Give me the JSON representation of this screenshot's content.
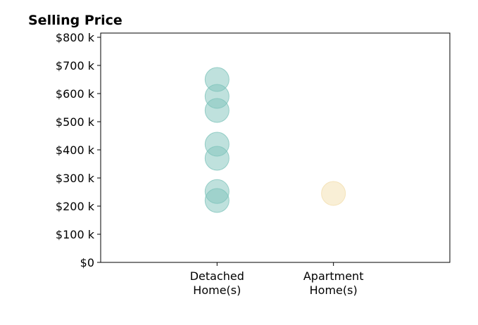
{
  "chart_data": {
    "type": "scatter",
    "title": "Selling Price",
    "xlabel": "",
    "ylabel": "",
    "categories": [
      [
        "Detached",
        "Home(s)"
      ],
      [
        "Apartment",
        "Home(s)"
      ]
    ],
    "y_ticks": [
      {
        "value": 0,
        "label": "$0"
      },
      {
        "value": 100000,
        "label": "$100 k"
      },
      {
        "value": 200000,
        "label": "$200 k"
      },
      {
        "value": 300000,
        "label": "$300 k"
      },
      {
        "value": 400000,
        "label": "$400 k"
      },
      {
        "value": 500000,
        "label": "$500 k"
      },
      {
        "value": 600000,
        "label": "$600 k"
      },
      {
        "value": 700000,
        "label": "$700 k"
      },
      {
        "value": 800000,
        "label": "$800 k"
      }
    ],
    "ylim": [
      0,
      815000
    ],
    "xlim": [
      -1,
      2
    ],
    "grid": false,
    "series": [
      {
        "color": "#7fc4bc",
        "points": [
          {
            "x": 0,
            "y": 650000
          },
          {
            "x": 0,
            "y": 590000
          },
          {
            "x": 0,
            "y": 540000
          },
          {
            "x": 0,
            "y": 420000
          },
          {
            "x": 0,
            "y": 370000
          },
          {
            "x": 0,
            "y": 252000
          },
          {
            "x": 0,
            "y": 220000
          }
        ]
      },
      {
        "color": "#f3dfae",
        "points": [
          {
            "x": 1,
            "y": 245000
          }
        ]
      }
    ]
  }
}
